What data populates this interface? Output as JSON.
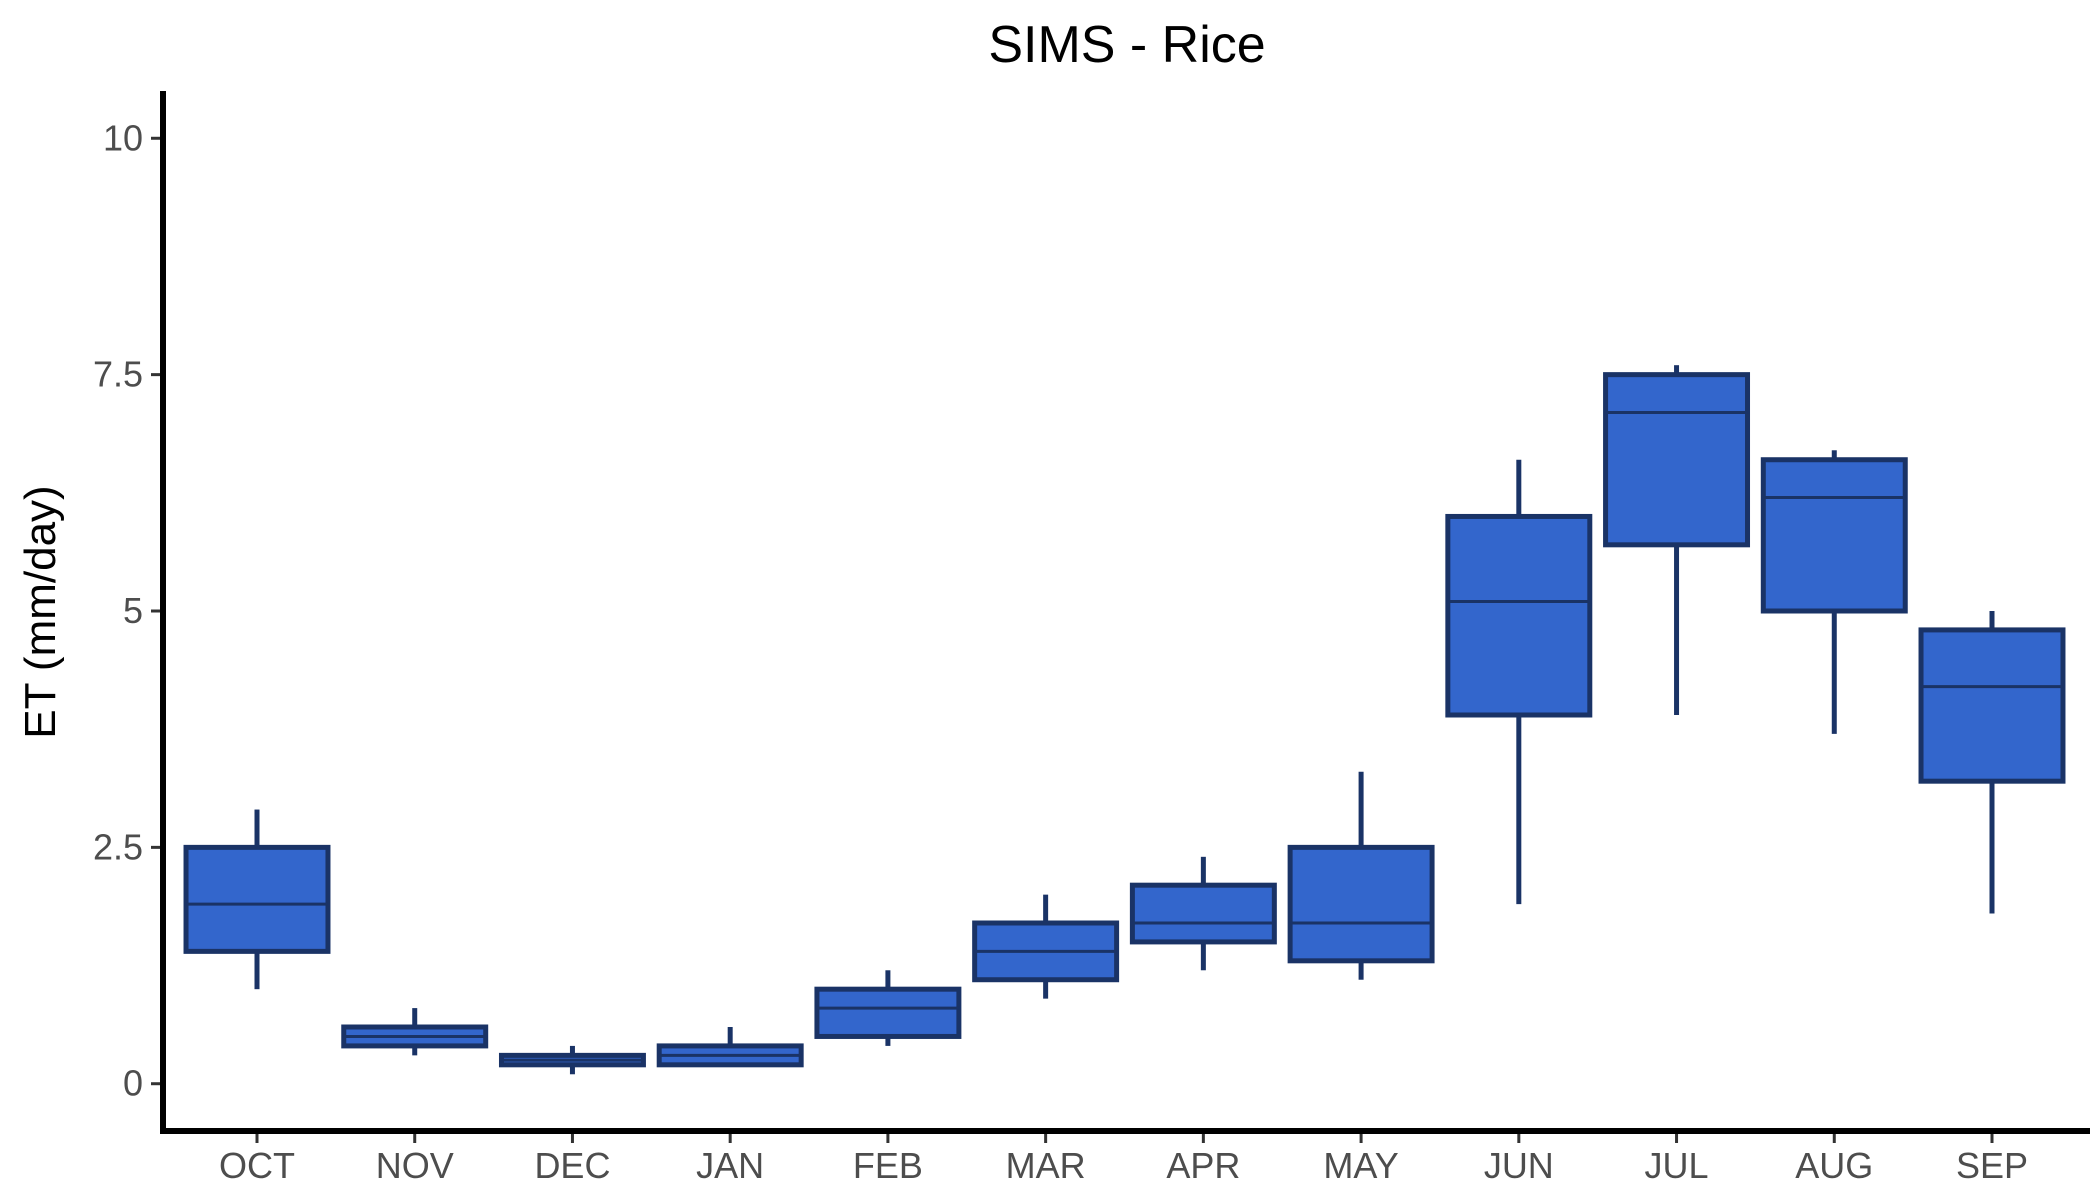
{
  "chart_data": {
    "type": "box",
    "title": "SIMS - Rice",
    "xlabel": "",
    "ylabel": "ET (mm/day)",
    "ylim": [
      -0.5,
      10.5
    ],
    "yticks": [
      0,
      2.5,
      5,
      7.5,
      10
    ],
    "ytick_labels": [
      "0",
      "2.5",
      "5",
      "7.5",
      "10"
    ],
    "grid": false,
    "legend": "none",
    "colors": {
      "fill": "#3366cc",
      "stroke": "#1a3366",
      "axis": "#000000"
    },
    "categories": [
      "OCT",
      "NOV",
      "DEC",
      "JAN",
      "FEB",
      "MAR",
      "APR",
      "MAY",
      "JUN",
      "JUL",
      "AUG",
      "SEP"
    ],
    "boxes": [
      {
        "min": 1.0,
        "q1": 1.4,
        "median": 1.9,
        "q3": 2.5,
        "max": 2.9
      },
      {
        "min": 0.3,
        "q1": 0.4,
        "median": 0.5,
        "q3": 0.6,
        "max": 0.8
      },
      {
        "min": 0.1,
        "q1": 0.2,
        "median": 0.25,
        "q3": 0.3,
        "max": 0.4
      },
      {
        "min": 0.2,
        "q1": 0.2,
        "median": 0.3,
        "q3": 0.4,
        "max": 0.6
      },
      {
        "min": 0.4,
        "q1": 0.5,
        "median": 0.8,
        "q3": 1.0,
        "max": 1.2
      },
      {
        "min": 0.9,
        "q1": 1.1,
        "median": 1.4,
        "q3": 1.7,
        "max": 2.0
      },
      {
        "min": 1.2,
        "q1": 1.5,
        "median": 1.7,
        "q3": 2.1,
        "max": 2.4
      },
      {
        "min": 1.1,
        "q1": 1.3,
        "median": 1.7,
        "q3": 2.5,
        "max": 3.3
      },
      {
        "min": 1.9,
        "q1": 3.9,
        "median": 5.1,
        "q3": 6.0,
        "max": 6.6
      },
      {
        "min": 3.9,
        "q1": 5.7,
        "median": 7.1,
        "q3": 7.5,
        "max": 7.6
      },
      {
        "min": 3.7,
        "q1": 5.0,
        "median": 6.2,
        "q3": 6.6,
        "max": 6.7
      },
      {
        "min": 1.8,
        "q1": 3.2,
        "median": 4.2,
        "q3": 4.8,
        "max": 5.0
      }
    ]
  }
}
